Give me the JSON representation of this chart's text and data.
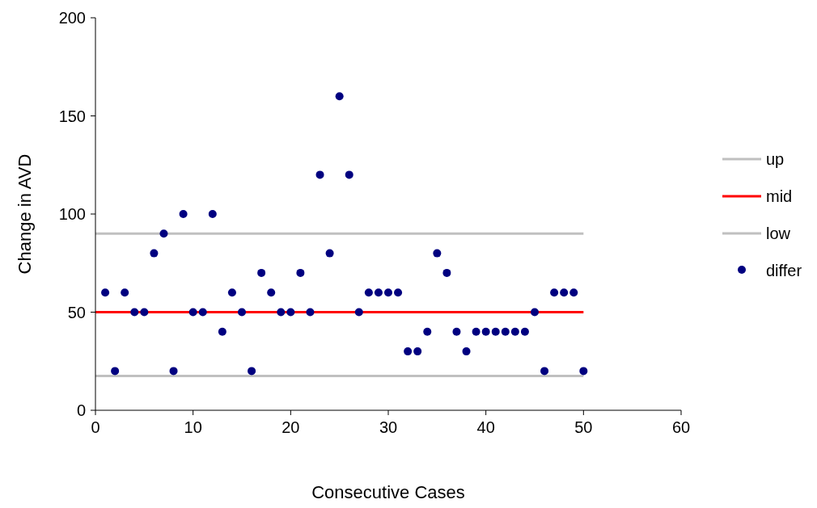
{
  "chart_data": {
    "type": "scatter",
    "xlabel": "Consecutive Cases",
    "ylabel": "Change in AVD",
    "xlim": [
      0,
      60
    ],
    "xticks": [
      0,
      10,
      20,
      30,
      40,
      50,
      60
    ],
    "ylim": [
      0,
      200
    ],
    "yticks": [
      0,
      50,
      100,
      150,
      200
    ],
    "grid": false,
    "legend": "right",
    "marker": "circle",
    "series": [
      {
        "name": "up",
        "type": "line",
        "marker": "none",
        "color": "#c0c0c0",
        "x": [
          0,
          50
        ],
        "values": [
          90,
          90
        ]
      },
      {
        "name": "mid",
        "type": "line",
        "marker": "none",
        "color": "#ff0000",
        "x": [
          0,
          50
        ],
        "values": [
          50,
          50
        ]
      },
      {
        "name": "low",
        "type": "line",
        "marker": "none",
        "color": "#c0c0c0",
        "x": [
          0,
          50
        ],
        "values": [
          17.5,
          17.5
        ]
      },
      {
        "name": "differ",
        "color": "#000080",
        "x": [
          1,
          2,
          3,
          4,
          5,
          6,
          7,
          8,
          9,
          10,
          11,
          12,
          13,
          14,
          15,
          16,
          17,
          18,
          19,
          20,
          21,
          22,
          23,
          24,
          25,
          26,
          27,
          28,
          29,
          30,
          31,
          32,
          33,
          34,
          35,
          36,
          37,
          38,
          39,
          40,
          41,
          42,
          43,
          44,
          45,
          46,
          47,
          48,
          49,
          50
        ],
        "values": [
          60,
          20,
          60,
          50,
          50,
          80,
          90,
          20,
          100,
          50,
          50,
          100,
          40,
          60,
          50,
          20,
          70,
          60,
          50,
          50,
          70,
          50,
          120,
          80,
          160,
          120,
          50,
          60,
          60,
          60,
          60,
          30,
          30,
          40,
          80,
          70,
          40,
          30,
          40,
          40,
          40,
          40,
          40,
          40,
          50,
          20,
          60,
          60,
          60,
          20
        ]
      }
    ]
  }
}
